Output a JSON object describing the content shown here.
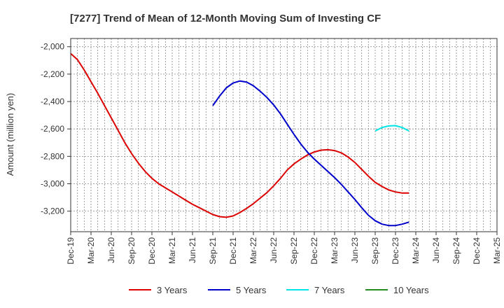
{
  "chart_data": {
    "type": "line",
    "title": "[7277]  Trend of Mean of 12-Month Moving Sum of Investing CF",
    "xlabel": "",
    "ylabel": "Amount (million yen)",
    "ylim": [
      -3350,
      -1940
    ],
    "yticks": [
      -2000,
      -2200,
      -2400,
      -2600,
      -2800,
      -3000,
      -3200
    ],
    "ytick_labels": [
      "-2,000",
      "-2,200",
      "-2,400",
      "-2,600",
      "-2,800",
      "-3,000",
      "-3,200"
    ],
    "x_start": "Dec-19",
    "n_months": 63,
    "xtick_labels": [
      "Dec-19",
      "Mar-20",
      "Jun-20",
      "Sep-20",
      "Dec-20",
      "Mar-21",
      "Jun-21",
      "Sep-21",
      "Dec-21",
      "Mar-22",
      "Jun-22",
      "Sep-22",
      "Dec-22",
      "Mar-23",
      "Jun-23",
      "Sep-23",
      "Dec-23",
      "Mar-24",
      "Jun-24",
      "Sep-24",
      "Dec-24",
      "Mar-25"
    ],
    "grid": true,
    "legend_position": "bottom",
    "series": [
      {
        "name": "3 Years",
        "color": "#dd0000",
        "x": [
          0,
          1,
          2,
          3,
          4,
          5,
          6,
          7,
          8,
          9,
          10,
          11,
          12,
          13,
          14,
          15,
          16,
          17,
          18,
          19,
          20,
          21,
          22,
          23,
          24,
          25,
          26,
          27,
          28,
          29,
          30,
          31,
          32,
          33,
          34,
          35,
          36,
          37,
          38,
          39,
          40,
          41,
          42,
          43,
          44,
          45,
          46,
          47,
          48,
          49,
          50
        ],
        "values": [
          -2050,
          -2095,
          -2170,
          -2255,
          -2340,
          -2430,
          -2520,
          -2610,
          -2700,
          -2780,
          -2850,
          -2910,
          -2960,
          -3000,
          -3030,
          -3060,
          -3090,
          -3120,
          -3150,
          -3175,
          -3200,
          -3225,
          -3240,
          -3245,
          -3235,
          -3210,
          -3180,
          -3145,
          -3105,
          -3065,
          -3015,
          -2960,
          -2900,
          -2855,
          -2820,
          -2790,
          -2768,
          -2755,
          -2752,
          -2758,
          -2775,
          -2805,
          -2845,
          -2895,
          -2945,
          -2990,
          -3020,
          -3045,
          -3060,
          -3068,
          -3068
        ]
      },
      {
        "name": "5 Years",
        "color": "#0000cc",
        "x": [
          21,
          22,
          23,
          24,
          25,
          26,
          27,
          28,
          29,
          30,
          31,
          32,
          33,
          34,
          35,
          36,
          37,
          38,
          39,
          40,
          41,
          42,
          43,
          44,
          45,
          46,
          47,
          48,
          49,
          50
        ],
        "values": [
          -2430,
          -2360,
          -2300,
          -2265,
          -2250,
          -2258,
          -2285,
          -2325,
          -2370,
          -2425,
          -2490,
          -2565,
          -2640,
          -2710,
          -2770,
          -2820,
          -2865,
          -2910,
          -2955,
          -3005,
          -3060,
          -3115,
          -3175,
          -3230,
          -3270,
          -3295,
          -3305,
          -3305,
          -3295,
          -3280
        ]
      },
      {
        "name": "7 Years",
        "color": "#00e5e5",
        "x": [
          45,
          46,
          47,
          48,
          49,
          50
        ],
        "values": [
          -2615,
          -2590,
          -2578,
          -2576,
          -2590,
          -2615
        ]
      },
      {
        "name": "10 Years",
        "color": "#228b22",
        "x": [],
        "values": []
      }
    ]
  }
}
